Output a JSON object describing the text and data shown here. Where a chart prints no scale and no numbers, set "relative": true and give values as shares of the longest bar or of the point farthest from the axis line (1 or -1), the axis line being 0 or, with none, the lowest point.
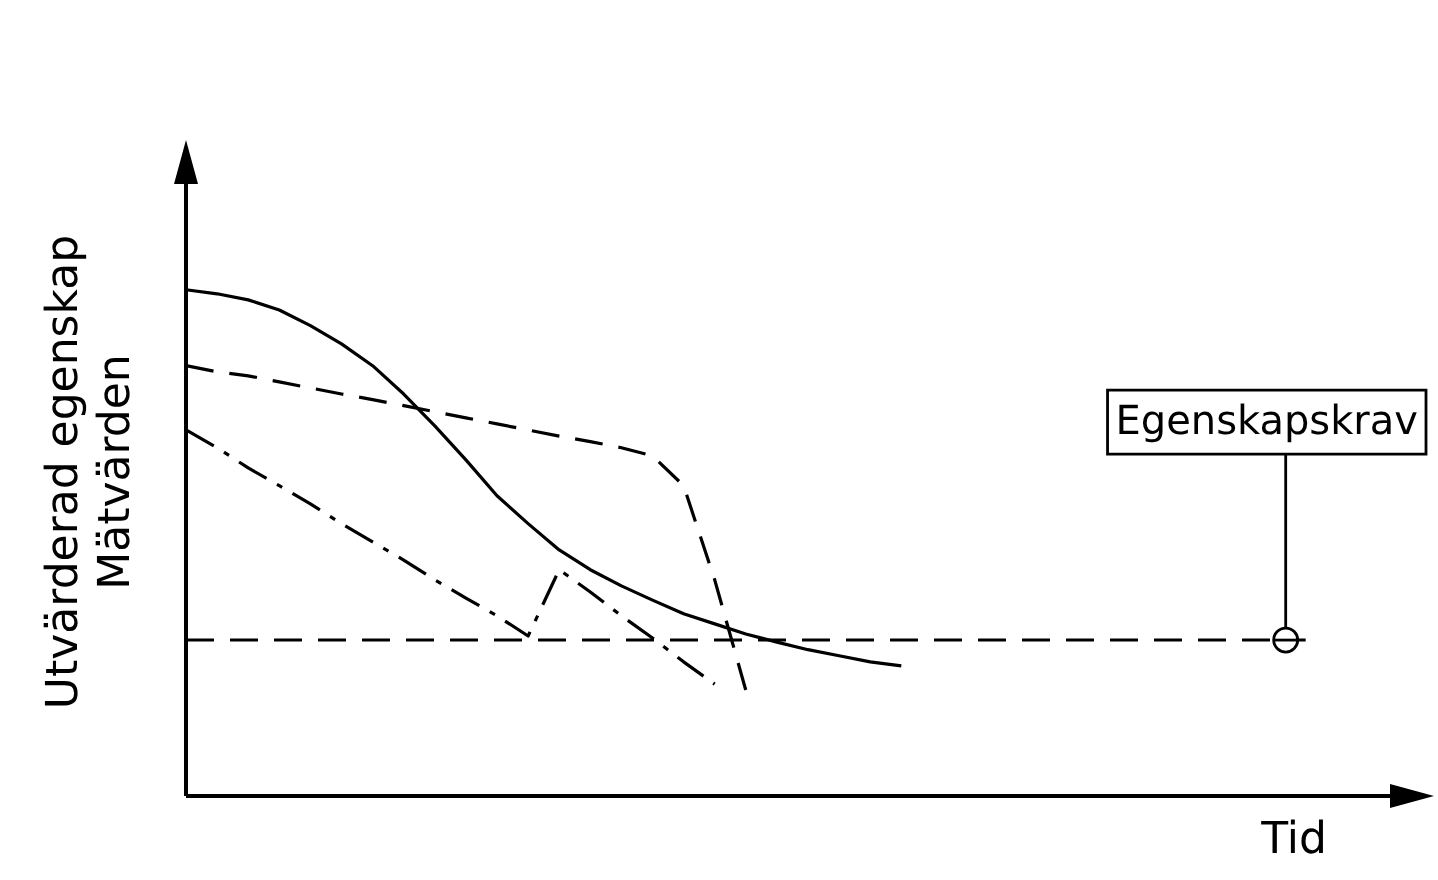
{
  "chart_data": {
    "type": "line",
    "relative": true,
    "legend": false,
    "marker": "none",
    "xlabel": "Tid",
    "ylabel": "Utvärderad egenskap\nMätvärden",
    "categories": [
      null,
      null,
      null,
      null,
      null,
      null,
      null,
      null,
      null,
      null,
      null,
      null,
      null,
      null,
      null,
      null,
      null,
      null,
      null,
      null,
      null,
      null,
      null,
      null,
      null,
      null,
      null,
      null,
      null,
      null,
      null,
      null,
      null,
      null,
      null,
      null,
      null,
      null,
      null,
      null,
      null
    ],
    "series": [
      {
        "color": "#000000",
        "line_style": "solid",
        "values": [
          1.0,
          0.992,
          0.98,
          0.96,
          0.929,
          0.893,
          0.85,
          0.794,
          0.731,
          0.664,
          0.593,
          0.538,
          0.486,
          0.447,
          0.415,
          0.387,
          0.36,
          0.34,
          0.32,
          0.304,
          0.289,
          0.277,
          0.265,
          0.257,
          null,
          null,
          null,
          null,
          null,
          null,
          null,
          null,
          null,
          null,
          null,
          null,
          null,
          null,
          null,
          null,
          null
        ]
      },
      {
        "color": "#000000",
        "line_style": "dashed",
        "values": [
          0.85,
          0.838,
          0.83,
          0.818,
          0.806,
          0.794,
          0.783,
          0.771,
          0.759,
          0.747,
          0.735,
          0.723,
          0.711,
          0.7,
          0.688,
          0.672,
          0.613,
          0.427,
          0.209,
          null,
          null,
          null,
          null,
          null,
          null,
          null,
          null,
          null,
          null,
          null,
          null,
          null,
          null,
          null,
          null,
          null,
          null,
          null,
          null,
          null,
          null
        ]
      },
      {
        "color": "#000000",
        "line_style": "dashdot",
        "values": [
          0.723,
          0.688,
          0.648,
          0.613,
          0.577,
          0.538,
          0.502,
          0.466,
          0.427,
          0.391,
          0.356,
          0.316,
          0.447,
          0.403,
          0.356,
          0.312,
          0.265,
          0.221,
          null,
          null,
          null,
          null,
          null,
          null,
          null,
          null,
          null,
          null,
          null,
          null,
          null,
          null,
          null,
          null,
          null,
          null,
          null,
          null,
          null,
          null,
          null
        ]
      }
    ],
    "ref_lines": [
      {
        "axis": "y",
        "value": 0.308,
        "line_style": "dashed",
        "color": "#000000"
      }
    ],
    "annotations": [
      "Egenskapskrav"
    ]
  }
}
